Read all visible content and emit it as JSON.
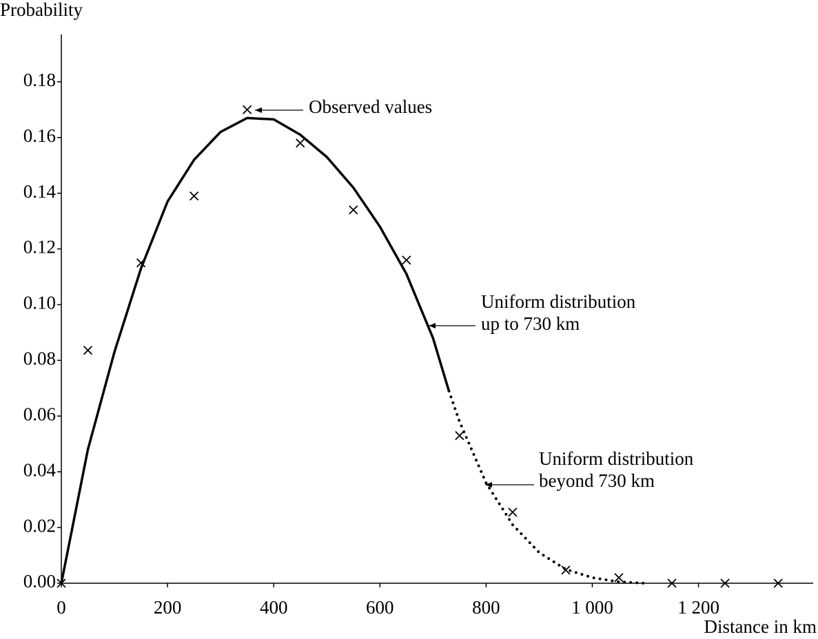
{
  "chart_data": {
    "type": "line",
    "y_axis_label": "Probability",
    "x_axis_label": "Distance in km",
    "xlim": [
      0,
      1416
    ],
    "ylim": [
      0,
      0.197
    ],
    "xticks": [
      0,
      200,
      400,
      600,
      800,
      {
        "value": 1000,
        "label": "1 000"
      },
      {
        "value": 1200,
        "label": "1 200"
      }
    ],
    "yticks": [
      {
        "value": 0,
        "label": "0.00"
      },
      {
        "value": 0.02,
        "label": "0.02"
      },
      {
        "value": 0.04,
        "label": "0.04"
      },
      {
        "value": 0.06,
        "label": "0.06"
      },
      {
        "value": 0.08,
        "label": "0.08"
      },
      {
        "value": 0.1,
        "label": "0.10"
      },
      {
        "value": 0.12,
        "label": "0.12"
      },
      {
        "value": 0.14,
        "label": "0.14"
      },
      {
        "value": 0.16,
        "label": "0.16"
      },
      {
        "value": 0.18,
        "label": "0.18"
      }
    ],
    "series": [
      {
        "style": "markers",
        "color": "#000000",
        "x": [
          0,
          50,
          150,
          250,
          350,
          450,
          550,
          650,
          750,
          850,
          950,
          1050,
          1150,
          1250,
          1350
        ],
        "values": [
          0,
          0.0836,
          0.115,
          0.139,
          0.17,
          0.158,
          0.134,
          0.116,
          0.053,
          0.0255,
          0.0047,
          0.002,
          0,
          0,
          0
        ]
      },
      {
        "style": "solid",
        "color": "#000000",
        "x": [
          0,
          50,
          100,
          150,
          200,
          250,
          300,
          350,
          400,
          450,
          500,
          550,
          600,
          650,
          700,
          730
        ],
        "values": [
          0,
          0.048,
          0.083,
          0.113,
          0.137,
          0.152,
          0.162,
          0.167,
          0.1665,
          0.161,
          0.153,
          0.142,
          0.128,
          0.111,
          0.088,
          0.069
        ]
      },
      {
        "style": "dotted",
        "color": "#000000",
        "x": [
          730,
          750,
          800,
          850,
          900,
          950,
          1000,
          1050,
          1100
        ],
        "values": [
          0.069,
          0.058,
          0.036,
          0.021,
          0.011,
          0.005,
          0.002,
          0.0005,
          0
        ]
      }
    ],
    "annotations": [
      {
        "text": [
          "Observed values"
        ]
      },
      {
        "text": [
          "Uniform distribution",
          "up to 730 km"
        ]
      },
      {
        "text": [
          "Uniform distribution",
          "beyond 730 km"
        ]
      }
    ]
  }
}
